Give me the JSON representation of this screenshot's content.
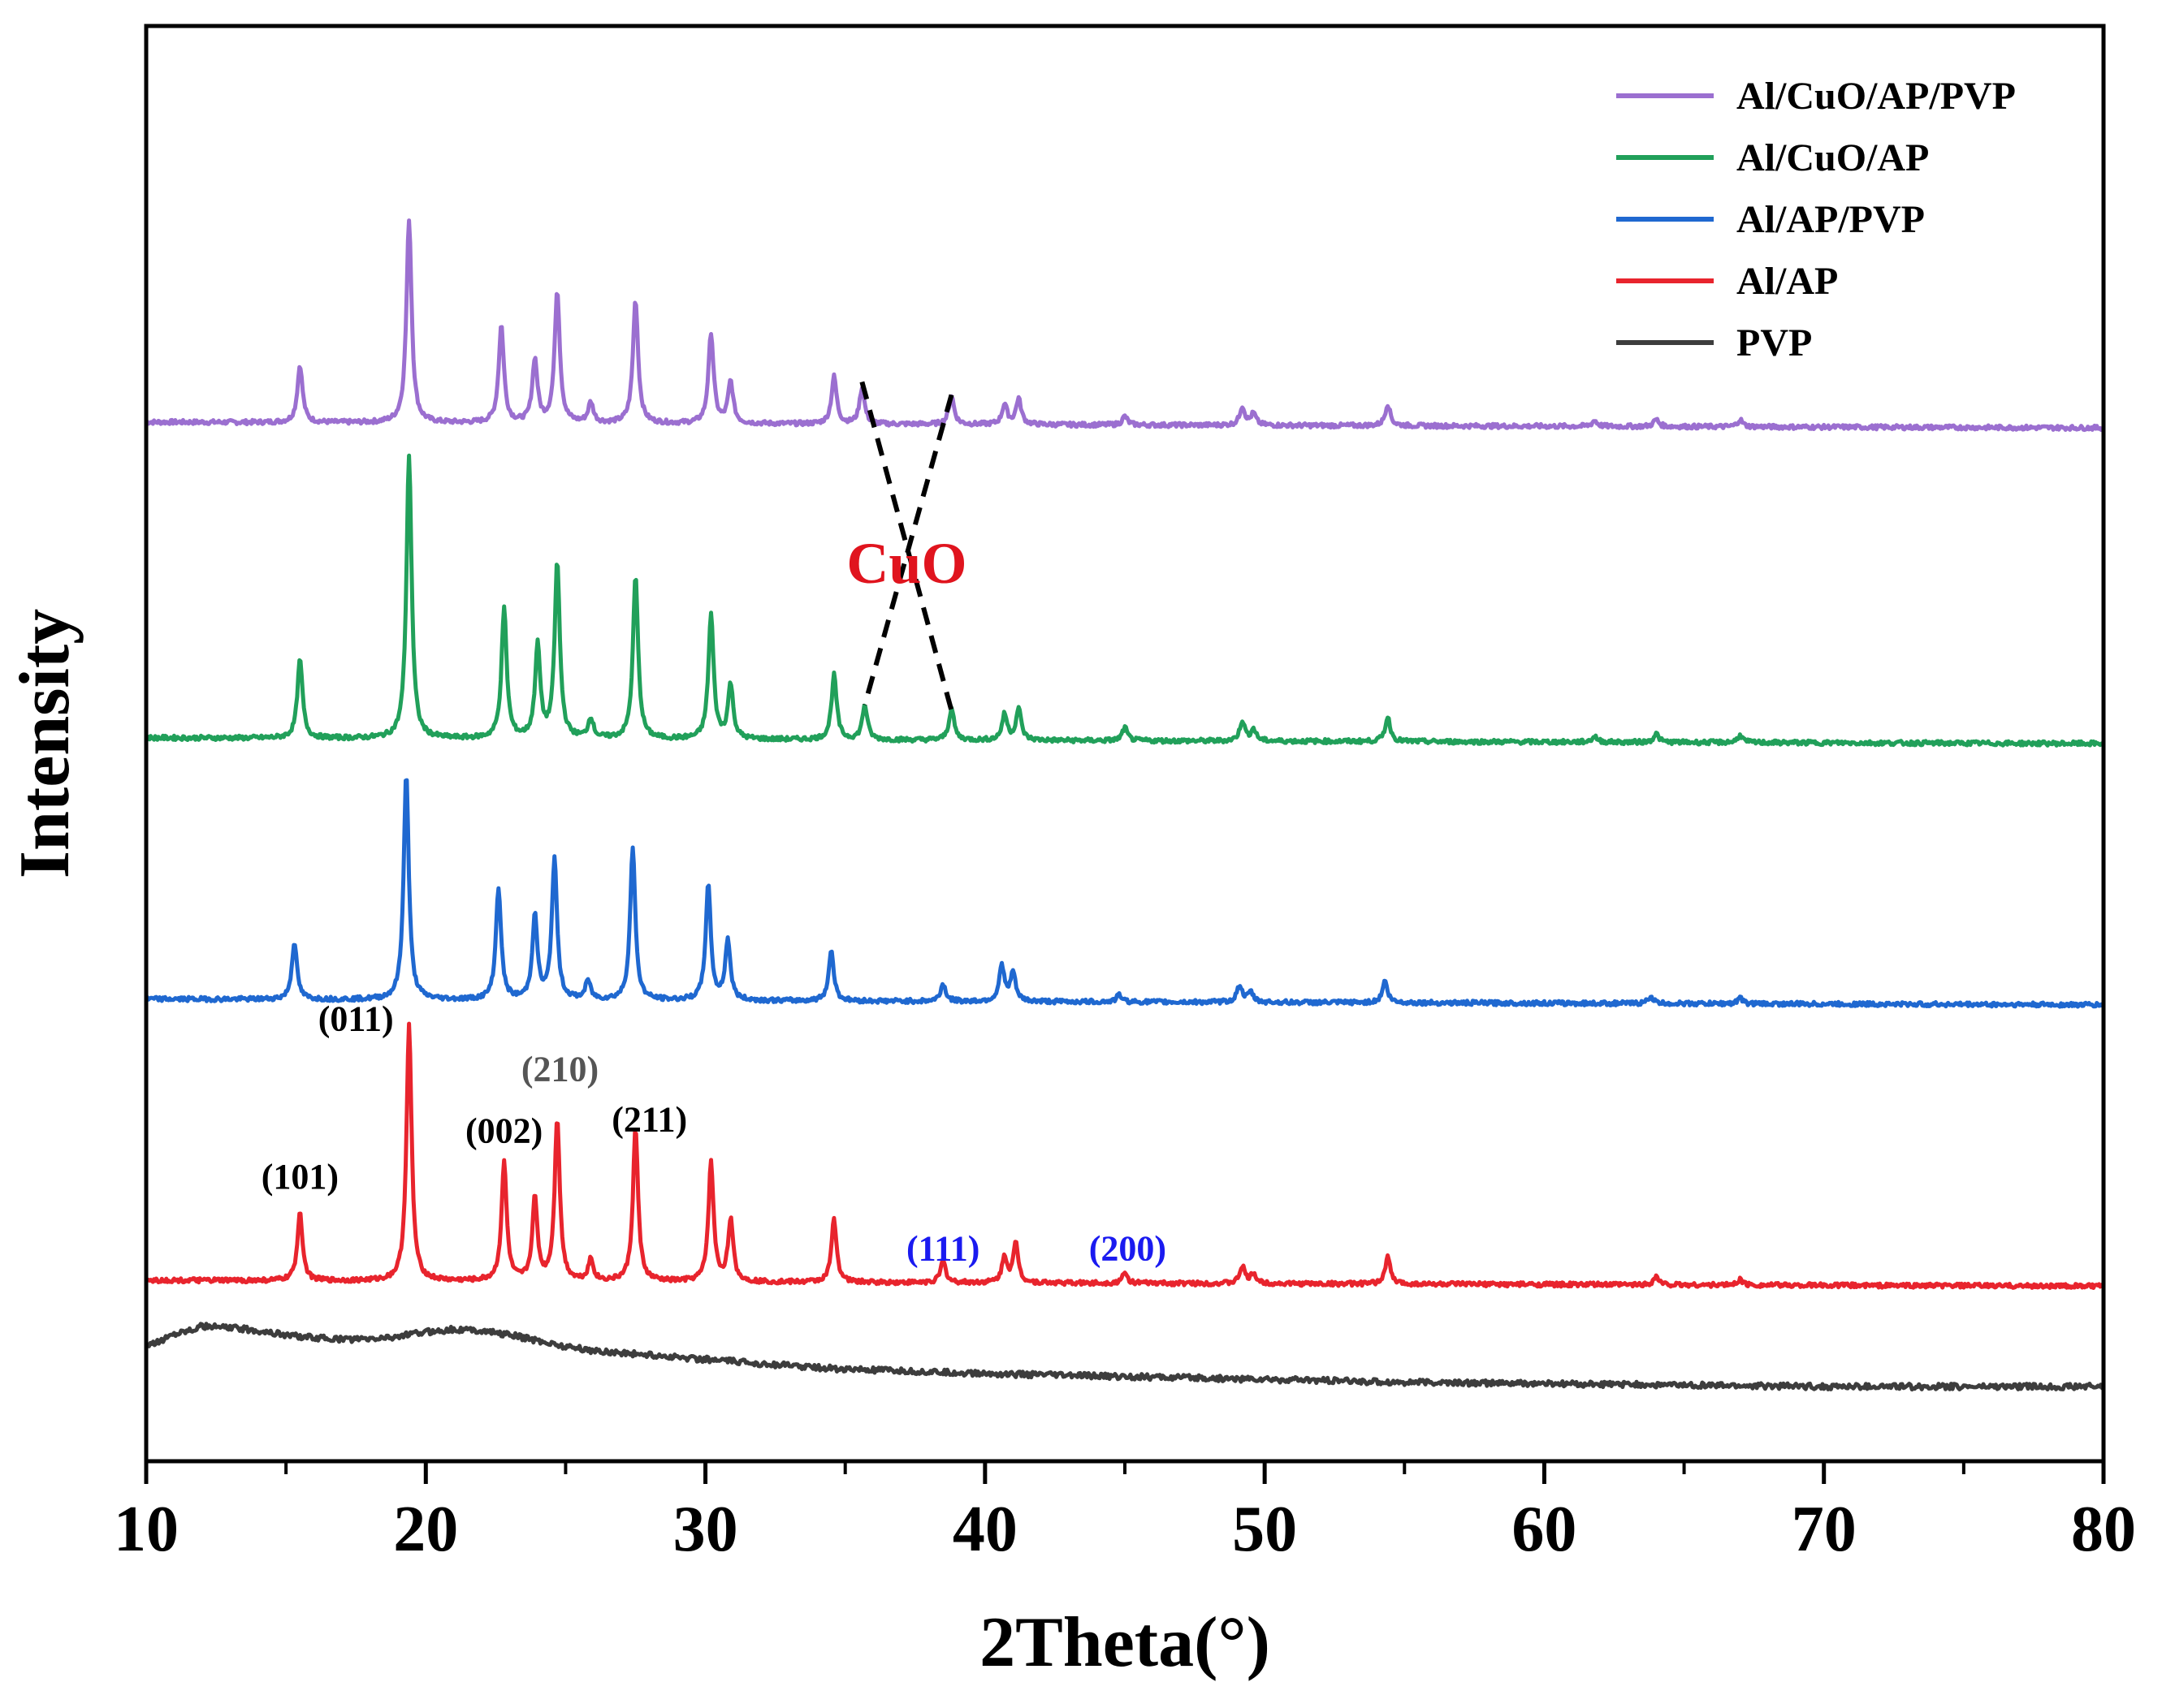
{
  "chart_data": {
    "type": "line",
    "title": "",
    "xlabel": "2Theta(°)",
    "ylabel": "Intensity",
    "xlim": [
      10,
      80
    ],
    "x_ticks": [
      10,
      20,
      30,
      40,
      50,
      60,
      70,
      80
    ],
    "x_tick_labels": [
      "10",
      "20",
      "30",
      "40",
      "50",
      "60",
      "70",
      "80"
    ],
    "y_axis_note": "stacked patterns, intensity in arbitrary units (offset per series, no y tick labels)",
    "legend_position": "top-right",
    "series": [
      {
        "name": "Al/CuO/AP/PVP",
        "color": "#9b6fd0",
        "baseline": 0.72,
        "peaks": [
          [
            15.5,
            0.04
          ],
          [
            19.4,
            0.142
          ],
          [
            22.7,
            0.068
          ],
          [
            23.9,
            0.044
          ],
          [
            24.7,
            0.092
          ],
          [
            25.9,
            0.014
          ],
          [
            27.5,
            0.086
          ],
          [
            30.2,
            0.063
          ],
          [
            30.9,
            0.029
          ],
          [
            34.6,
            0.033
          ],
          [
            35.6,
            0.025
          ],
          [
            38.8,
            0.02
          ],
          [
            40.7,
            0.014
          ],
          [
            41.2,
            0.018
          ],
          [
            45.0,
            0.006
          ],
          [
            49.2,
            0.013
          ],
          [
            49.6,
            0.008
          ],
          [
            54.4,
            0.015
          ],
          [
            61.8,
            0.004
          ],
          [
            64.0,
            0.005
          ],
          [
            67.0,
            0.005
          ]
        ]
      },
      {
        "name": "Al/CuO/AP",
        "color": "#21a05a",
        "baseline": 0.5,
        "peaks": [
          [
            15.5,
            0.055
          ],
          [
            19.4,
            0.198
          ],
          [
            22.8,
            0.09
          ],
          [
            24.0,
            0.064
          ],
          [
            24.7,
            0.122
          ],
          [
            25.9,
            0.014
          ],
          [
            27.5,
            0.113
          ],
          [
            30.2,
            0.087
          ],
          [
            30.9,
            0.038
          ],
          [
            34.6,
            0.045
          ],
          [
            35.7,
            0.024
          ],
          [
            38.8,
            0.022
          ],
          [
            40.7,
            0.018
          ],
          [
            41.2,
            0.022
          ],
          [
            45.0,
            0.009
          ],
          [
            49.2,
            0.014
          ],
          [
            49.6,
            0.008
          ],
          [
            54.4,
            0.017
          ],
          [
            61.8,
            0.004
          ],
          [
            64.0,
            0.006
          ],
          [
            67.0,
            0.005
          ]
        ]
      },
      {
        "name": "Al/AP/PVP",
        "color": "#1f68d0",
        "baseline": 0.318,
        "peaks": [
          [
            15.3,
            0.04
          ],
          [
            19.3,
            0.157
          ],
          [
            22.6,
            0.078
          ],
          [
            23.9,
            0.058
          ],
          [
            24.6,
            0.098
          ],
          [
            25.8,
            0.013
          ],
          [
            27.4,
            0.106
          ],
          [
            30.1,
            0.08
          ],
          [
            30.8,
            0.042
          ],
          [
            34.5,
            0.035
          ],
          [
            38.5,
            0.012
          ],
          [
            40.6,
            0.025
          ],
          [
            41.0,
            0.02
          ],
          [
            44.8,
            0.005
          ],
          [
            49.1,
            0.012
          ],
          [
            49.5,
            0.007
          ],
          [
            54.3,
            0.015
          ],
          [
            63.8,
            0.005
          ],
          [
            67.0,
            0.004
          ]
        ]
      },
      {
        "name": "Al/AP",
        "color": "#e8242d",
        "baseline": 0.122,
        "peaks": [
          [
            15.5,
            0.048
          ],
          [
            19.4,
            0.178
          ],
          [
            22.8,
            0.082
          ],
          [
            23.9,
            0.057
          ],
          [
            24.7,
            0.113
          ],
          [
            25.9,
            0.015
          ],
          [
            27.5,
            0.106
          ],
          [
            30.2,
            0.083
          ],
          [
            30.9,
            0.043
          ],
          [
            34.6,
            0.044
          ],
          [
            38.5,
            0.015
          ],
          [
            40.7,
            0.018
          ],
          [
            41.1,
            0.027
          ],
          [
            45.0,
            0.007
          ],
          [
            49.2,
            0.012
          ],
          [
            49.6,
            0.007
          ],
          [
            54.4,
            0.019
          ],
          [
            64.0,
            0.006
          ],
          [
            67.0,
            0.004
          ]
        ]
      },
      {
        "name": "PVP",
        "color": "#3d3d3d",
        "baseline": 0.05,
        "x": [
          10,
          11,
          12,
          13,
          14,
          15,
          16,
          17,
          18,
          19,
          20,
          21,
          22,
          23,
          24,
          25,
          26,
          28,
          30,
          32,
          35,
          40,
          45,
          50,
          55,
          60,
          65,
          70,
          75,
          80
        ],
        "y": [
          0.079,
          0.089,
          0.094,
          0.093,
          0.091,
          0.088,
          0.086,
          0.085,
          0.085,
          0.087,
          0.09,
          0.092,
          0.091,
          0.088,
          0.084,
          0.08,
          0.077,
          0.074,
          0.071,
          0.068,
          0.064,
          0.061,
          0.059,
          0.057,
          0.055,
          0.054,
          0.053,
          0.052,
          0.052,
          0.052
        ]
      }
    ],
    "annotations": [
      {
        "text": "(101)",
        "x": 15.5,
        "y": 0.19,
        "color": "#000000"
      },
      {
        "text": "(011)",
        "x": 17.5,
        "y": 0.3,
        "color": "#000000"
      },
      {
        "text": "(002)",
        "x": 22.8,
        "y": 0.222,
        "color": "#000000"
      },
      {
        "text": "(210)",
        "x": 24.8,
        "y": 0.265,
        "color": "#555555"
      },
      {
        "text": "(211)",
        "x": 28.0,
        "y": 0.23,
        "color": "#000000"
      },
      {
        "text": "(111)",
        "x": 38.5,
        "y": 0.14,
        "color": "#1a1af0"
      },
      {
        "text": "(200)",
        "x": 45.1,
        "y": 0.14,
        "color": "#1a1af0"
      },
      {
        "text": "CuO",
        "x": 37.2,
        "y": 0.612,
        "color": "#e0141e"
      }
    ],
    "dashed_guides": [
      {
        "from": [
          35.6,
          0.752
        ],
        "to": [
          38.8,
          0.523
        ]
      },
      {
        "from": [
          38.8,
          0.743
        ],
        "to": [
          35.7,
          0.527
        ]
      }
    ]
  }
}
